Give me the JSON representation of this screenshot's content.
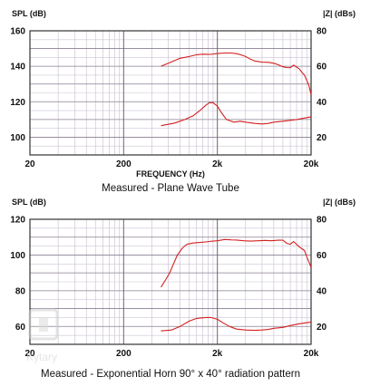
{
  "chart_data": [
    {
      "type": "line",
      "caption": "Measured - Plane Wave Tube",
      "xlabel": "FREQUENCY (Hz)",
      "ylabel_left": "SPL (dB)",
      "ylabel_right": "|Z| (dBs)",
      "x_scale": "log",
      "xlim": [
        20,
        20000
      ],
      "x_ticks": [
        {
          "value": 20,
          "label": "20"
        },
        {
          "value": 200,
          "label": "200"
        },
        {
          "value": 2000,
          "label": "2k"
        },
        {
          "value": 20000,
          "label": "20k"
        }
      ],
      "ylim_left": [
        90,
        160
      ],
      "y_ticks_left": [
        100,
        120,
        140,
        160
      ],
      "ylim_right": [
        10,
        80
      ],
      "y_ticks_right": [
        20,
        40,
        60,
        80
      ],
      "grid": true,
      "series": [
        {
          "axis": "left",
          "color": "#d42020",
          "points": [
            [
              500,
              140
            ],
            [
              650,
              142.5
            ],
            [
              800,
              144.5
            ],
            [
              1000,
              145.5
            ],
            [
              1200,
              146.5
            ],
            [
              1400,
              146.8
            ],
            [
              1700,
              146.7
            ],
            [
              2000,
              147.2
            ],
            [
              2400,
              147.5
            ],
            [
              2800,
              147.5
            ],
            [
              3200,
              147.1
            ],
            [
              3600,
              146.4
            ],
            [
              4000,
              145.5
            ],
            [
              4500,
              144
            ],
            [
              5000,
              143
            ],
            [
              6000,
              142.3
            ],
            [
              7000,
              142.2
            ],
            [
              8000,
              141.7
            ],
            [
              9000,
              140.8
            ],
            [
              10000,
              139.7
            ],
            [
              11000,
              139.3
            ],
            [
              12000,
              139.2
            ],
            [
              13000,
              140.7
            ],
            [
              14000,
              139.5
            ],
            [
              15000,
              138.5
            ],
            [
              16000,
              136.5
            ],
            [
              17000,
              135
            ],
            [
              18000,
              132
            ],
            [
              19000,
              129
            ],
            [
              20000,
              124
            ]
          ]
        },
        {
          "axis": "right",
          "color": "#d42020",
          "points": [
            [
              500,
              26.5
            ],
            [
              700,
              28
            ],
            [
              900,
              30
            ],
            [
              1100,
              32
            ],
            [
              1300,
              35
            ],
            [
              1500,
              38
            ],
            [
              1650,
              39.5
            ],
            [
              1800,
              39.5
            ],
            [
              2000,
              37.5
            ],
            [
              2200,
              34
            ],
            [
              2500,
              30
            ],
            [
              3000,
              28.5
            ],
            [
              3500,
              29
            ],
            [
              4000,
              28.5
            ],
            [
              5000,
              27.8
            ],
            [
              6000,
              27.5
            ],
            [
              7000,
              27.8
            ],
            [
              8000,
              28.5
            ],
            [
              10000,
              29
            ],
            [
              12000,
              29.5
            ],
            [
              14000,
              30
            ],
            [
              17000,
              30.8
            ],
            [
              20000,
              31.5
            ]
          ]
        }
      ]
    },
    {
      "type": "line",
      "caption": "Measured - Exponential Horn 90° x 40° radiation pattern",
      "xlabel": "",
      "ylabel_left": "SPL (dB)",
      "ylabel_right": "|Z| (dBs)",
      "x_scale": "log",
      "xlim": [
        20,
        20000
      ],
      "x_ticks": [
        {
          "value": 20,
          "label": "20"
        },
        {
          "value": 200,
          "label": "200"
        },
        {
          "value": 2000,
          "label": "2k"
        },
        {
          "value": 20000,
          "label": "20k"
        }
      ],
      "ylim_left": [
        50,
        120
      ],
      "y_ticks_left": [
        60,
        80,
        100,
        120
      ],
      "ylim_right": [
        10,
        80
      ],
      "y_ticks_right": [
        20,
        40,
        60,
        80
      ],
      "grid": true,
      "series": [
        {
          "axis": "left",
          "color": "#d42020",
          "points": [
            [
              500,
              82
            ],
            [
              560,
              86
            ],
            [
              620,
              90
            ],
            [
              680,
              95
            ],
            [
              750,
              100
            ],
            [
              850,
              104
            ],
            [
              950,
              106
            ],
            [
              1100,
              106.7
            ],
            [
              1300,
              107
            ],
            [
              1500,
              107.3
            ],
            [
              1800,
              107.8
            ],
            [
              2000,
              108
            ],
            [
              2400,
              108.7
            ],
            [
              2800,
              108.5
            ],
            [
              3200,
              108.4
            ],
            [
              3800,
              108
            ],
            [
              4500,
              107.8
            ],
            [
              5500,
              108
            ],
            [
              6500,
              108.2
            ],
            [
              7500,
              108
            ],
            [
              9000,
              108.3
            ],
            [
              10000,
              108.3
            ],
            [
              11000,
              106.5
            ],
            [
              12000,
              106
            ],
            [
              13000,
              107.5
            ],
            [
              14000,
              106
            ],
            [
              15000,
              104.5
            ],
            [
              16000,
              103.5
            ],
            [
              17000,
              102.5
            ],
            [
              18000,
              99
            ],
            [
              19000,
              96
            ],
            [
              20000,
              93
            ]
          ]
        },
        {
          "axis": "right",
          "color": "#d42020",
          "points": [
            [
              500,
              17.5
            ],
            [
              650,
              18
            ],
            [
              800,
              20
            ],
            [
              1000,
              23
            ],
            [
              1200,
              24.5
            ],
            [
              1500,
              25
            ],
            [
              1700,
              25
            ],
            [
              2000,
              24
            ],
            [
              2300,
              22
            ],
            [
              2700,
              20
            ],
            [
              3200,
              18.5
            ],
            [
              4000,
              18
            ],
            [
              5000,
              17.8
            ],
            [
              6000,
              18
            ],
            [
              7000,
              18.3
            ],
            [
              8000,
              19
            ],
            [
              10000,
              19.5
            ],
            [
              12000,
              20.5
            ],
            [
              15000,
              21.5
            ],
            [
              20000,
              22.5
            ]
          ]
        }
      ]
    }
  ],
  "watermark": {
    "text": "Kytary"
  }
}
